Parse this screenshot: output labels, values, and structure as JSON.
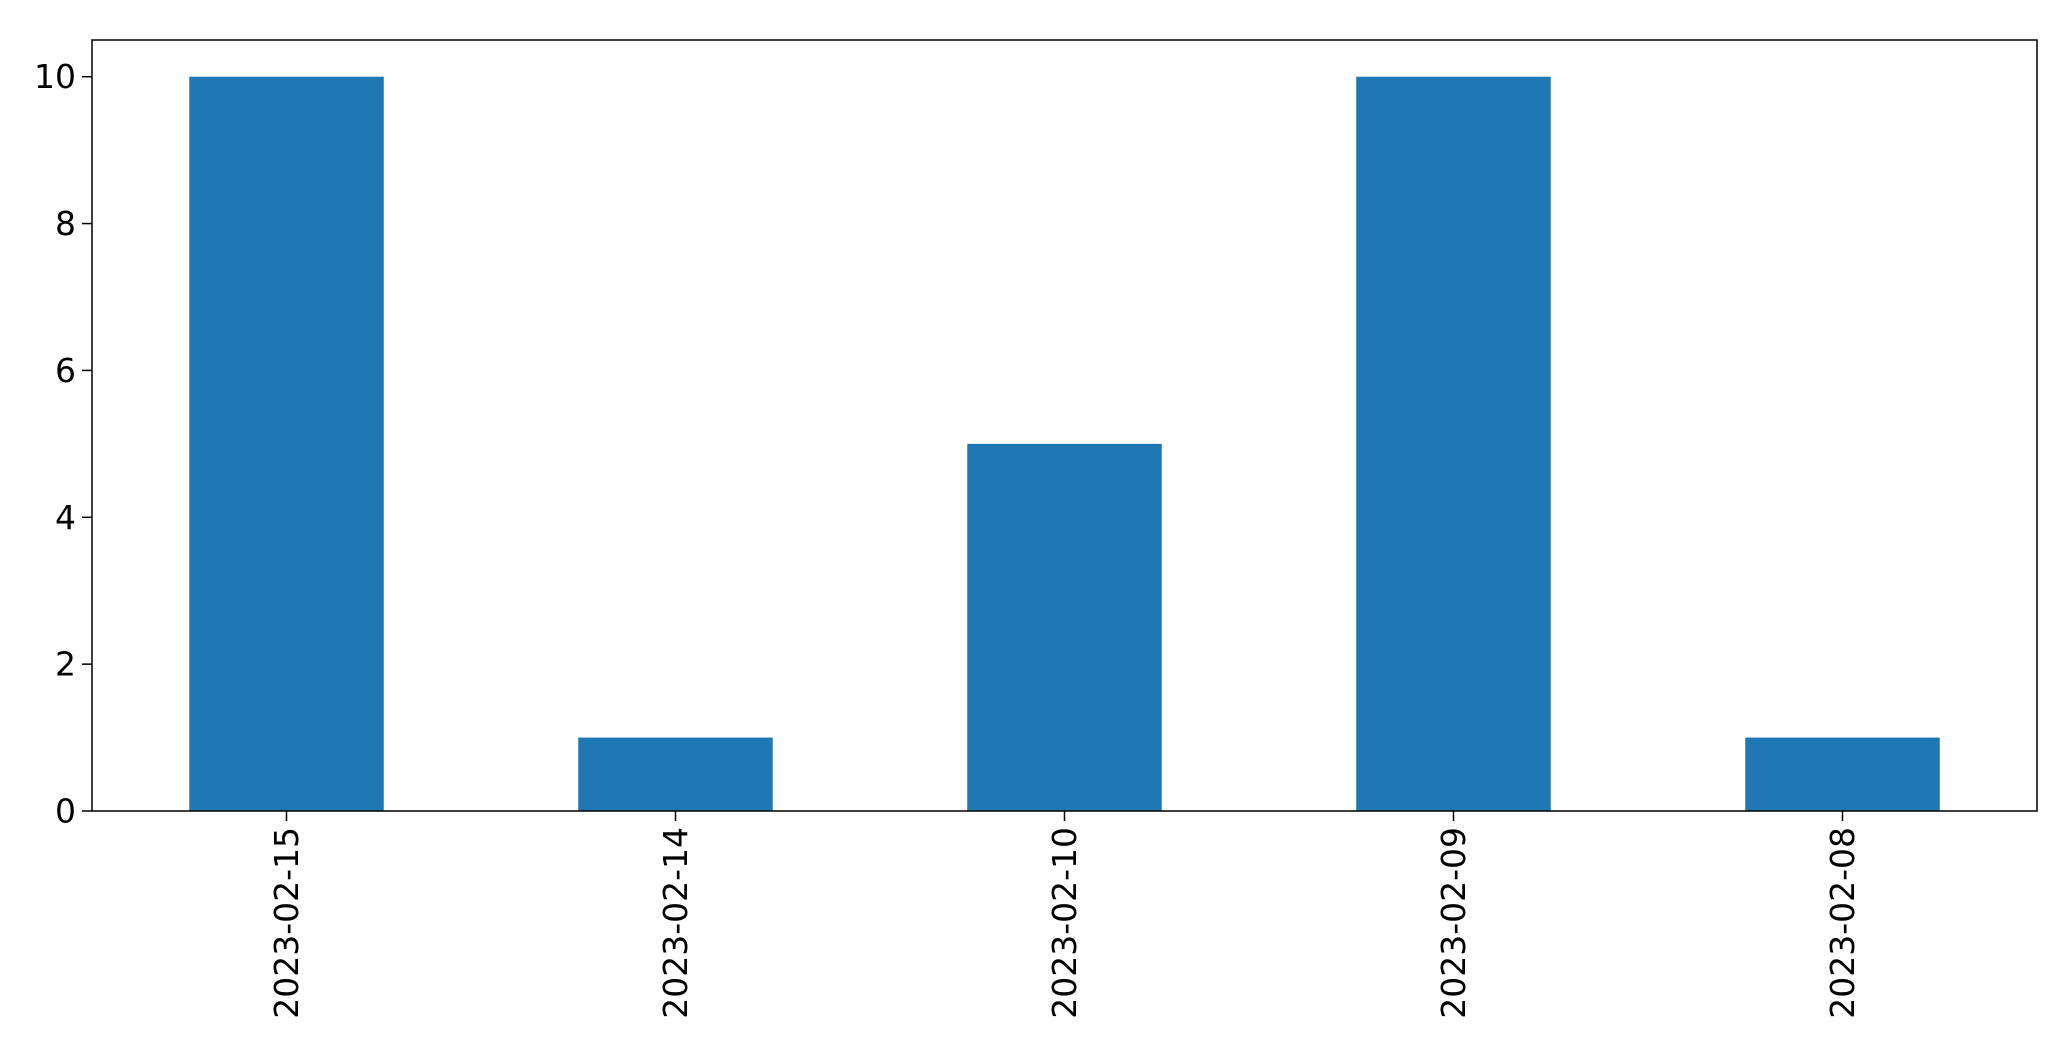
{
  "chart_data": {
    "type": "bar",
    "title": "",
    "xlabel": "",
    "ylabel": "",
    "categories": [
      "2023-02-15",
      "2023-02-14",
      "2023-02-10",
      "2023-02-09",
      "2023-02-08"
    ],
    "values": [
      10,
      1,
      5,
      10,
      1
    ],
    "ylim": [
      0,
      10.5
    ],
    "yticks": [
      0,
      2,
      4,
      6,
      8,
      10
    ],
    "grid": false,
    "legend": "none",
    "bar_color": "#1f77b4",
    "x_tick_rotation": "vertical"
  }
}
